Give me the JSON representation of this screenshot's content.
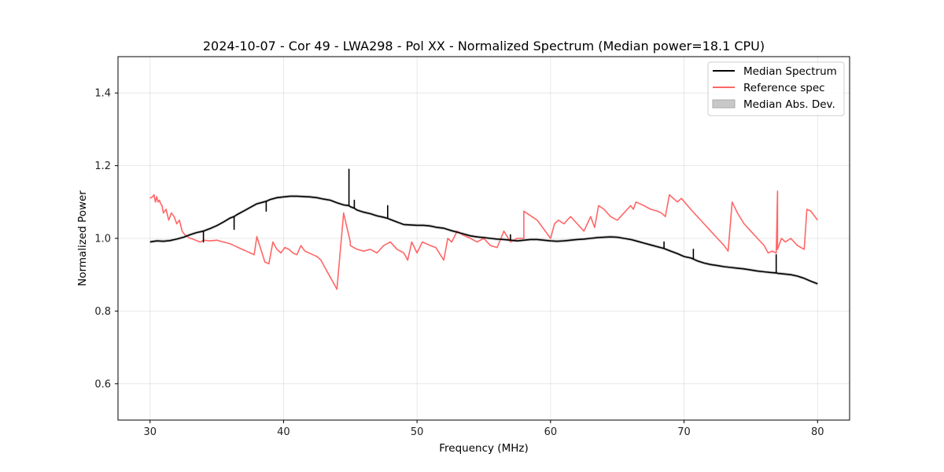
{
  "chart_data": {
    "type": "line",
    "title": "2024-10-07 - Cor 49 - LWA298 - Pol XX - Normalized Spectrum (Median power=18.1 CPU)",
    "xlabel": "Frequency (MHz)",
    "ylabel": "Normalized Power",
    "xlim": [
      27.6,
      82.4
    ],
    "ylim": [
      0.5,
      1.5
    ],
    "xticks": [
      30,
      40,
      50,
      60,
      70,
      80
    ],
    "yticks": [
      0.6,
      0.8,
      1.0,
      1.2,
      1.4
    ],
    "xtick_labels": [
      "30",
      "40",
      "50",
      "60",
      "70",
      "80"
    ],
    "ytick_labels": [
      "0.6",
      "0.8",
      "1.0",
      "1.2",
      "1.4"
    ],
    "grid": true,
    "legend_position": "top-right",
    "legend": [
      "Median Spectrum",
      "Reference spec",
      "Median Abs. Dev."
    ],
    "series": [
      {
        "name": "Median Spectrum",
        "color": "#000000",
        "x": [
          30.0,
          30.5,
          31.0,
          31.5,
          32.0,
          32.5,
          33.0,
          33.5,
          34.0,
          34.0,
          34.0,
          34.5,
          35.0,
          35.5,
          36.0,
          36.3,
          36.3,
          36.3,
          36.5,
          37.0,
          37.5,
          38.0,
          38.5,
          38.7,
          38.7,
          38.7,
          39.0,
          39.5,
          40.0,
          40.5,
          41.0,
          41.5,
          42.0,
          42.5,
          43.0,
          43.5,
          44.0,
          44.5,
          44.9,
          44.9,
          44.9,
          45.0,
          45.3,
          45.3,
          45.3,
          45.5,
          46.0,
          46.5,
          47.0,
          47.5,
          47.8,
          47.8,
          47.8,
          48.0,
          48.5,
          49.0,
          49.5,
          50.0,
          50.5,
          51.0,
          51.5,
          52.0,
          52.5,
          53.0,
          53.5,
          54.0,
          54.5,
          55.0,
          55.5,
          56.0,
          56.5,
          57.0,
          57.0,
          57.0,
          57.5,
          58.0,
          58.5,
          59.0,
          59.5,
          60.0,
          60.5,
          61.0,
          61.5,
          62.0,
          62.5,
          63.0,
          63.5,
          64.0,
          64.5,
          65.0,
          65.5,
          66.0,
          66.5,
          67.0,
          67.5,
          68.0,
          68.5,
          68.5,
          68.5,
          69.0,
          69.5,
          70.0,
          70.5,
          70.7,
          70.7,
          70.7,
          71.0,
          71.5,
          72.0,
          72.5,
          73.0,
          73.5,
          74.0,
          74.5,
          75.0,
          75.5,
          76.0,
          76.5,
          76.9,
          76.9,
          76.9,
          77.0,
          77.5,
          78.0,
          78.5,
          79.0,
          79.5,
          80.0
        ],
        "y": [
          0.99,
          0.993,
          0.992,
          0.994,
          0.998,
          1.003,
          1.01,
          1.016,
          1.02,
          0.99,
          1.02,
          1.027,
          1.035,
          1.045,
          1.056,
          1.06,
          1.025,
          1.06,
          1.065,
          1.075,
          1.085,
          1.095,
          1.1,
          1.102,
          1.075,
          1.102,
          1.107,
          1.112,
          1.114,
          1.116,
          1.116,
          1.115,
          1.114,
          1.112,
          1.108,
          1.105,
          1.098,
          1.092,
          1.09,
          1.19,
          1.09,
          1.087,
          1.083,
          1.105,
          1.083,
          1.078,
          1.072,
          1.068,
          1.062,
          1.058,
          1.055,
          1.09,
          1.055,
          1.052,
          1.045,
          1.038,
          1.037,
          1.036,
          1.036,
          1.034,
          1.03,
          1.028,
          1.022,
          1.017,
          1.012,
          1.007,
          1.004,
          1.002,
          1.0,
          0.998,
          0.997,
          0.995,
          1.01,
          0.995,
          0.993,
          0.995,
          0.997,
          0.997,
          0.995,
          0.993,
          0.992,
          0.993,
          0.995,
          0.997,
          0.998,
          1.0,
          1.002,
          1.003,
          1.004,
          1.003,
          1.0,
          0.997,
          0.992,
          0.987,
          0.982,
          0.977,
          0.972,
          0.99,
          0.972,
          0.965,
          0.958,
          0.95,
          0.946,
          0.943,
          0.97,
          0.943,
          0.938,
          0.932,
          0.928,
          0.925,
          0.922,
          0.92,
          0.918,
          0.916,
          0.913,
          0.91,
          0.908,
          0.906,
          0.905,
          0.955,
          0.905,
          0.904,
          0.902,
          0.9,
          0.896,
          0.89,
          0.882,
          0.875
        ]
      },
      {
        "name": "Reference spec",
        "color": "#ff6666",
        "x": [
          30.0,
          30.2,
          30.3,
          30.4,
          30.5,
          30.6,
          30.7,
          30.8,
          30.9,
          31.0,
          31.2,
          31.4,
          31.6,
          31.8,
          32.0,
          32.2,
          32.4,
          32.6,
          32.8,
          33.0,
          33.2,
          33.4,
          33.6,
          33.8,
          34.0,
          34.5,
          35.0,
          35.5,
          36.0,
          36.3,
          36.6,
          36.9,
          37.2,
          37.5,
          37.8,
          38.0,
          38.3,
          38.6,
          38.9,
          39.2,
          39.5,
          39.8,
          40.1,
          40.4,
          40.7,
          41.0,
          41.3,
          41.6,
          41.9,
          42.2,
          42.5,
          42.8,
          43.1,
          43.4,
          43.7,
          44.0,
          44.5,
          45.0,
          45.0,
          45.5,
          46.0,
          46.5,
          47.0,
          47.5,
          48.0,
          48.5,
          49.0,
          49.3,
          49.6,
          50.0,
          50.4,
          51.0,
          51.4,
          52.0,
          52.3,
          52.6,
          53.0,
          53.4,
          54.0,
          54.5,
          55.0,
          55.5,
          56.0,
          56.5,
          57.0,
          57.5,
          58.0,
          58.0,
          59.0,
          60.0,
          60.3,
          60.6,
          61.0,
          61.5,
          62.0,
          62.5,
          63.0,
          63.3,
          63.6,
          64.0,
          64.5,
          65.0,
          65.5,
          66.0,
          66.2,
          66.4,
          67.0,
          67.5,
          68.0,
          68.3,
          68.6,
          68.9,
          69.2,
          69.5,
          69.8,
          70.5,
          71.0,
          71.5,
          72.0,
          72.5,
          73.0,
          73.3,
          73.6,
          74.0,
          74.5,
          75.0,
          75.5,
          76.0,
          76.3,
          76.6,
          76.9,
          77.0,
          77.0,
          77.3,
          77.6,
          78.0,
          78.5,
          79.0,
          79.2,
          79.5,
          79.8,
          80.0
        ],
        "y": [
          1.11,
          1.115,
          1.12,
          1.1,
          1.115,
          1.1,
          1.105,
          1.095,
          1.09,
          1.07,
          1.08,
          1.05,
          1.07,
          1.06,
          1.04,
          1.05,
          1.02,
          1.01,
          1.005,
          1.0,
          0.998,
          0.995,
          0.992,
          0.99,
          0.995,
          0.993,
          0.995,
          0.99,
          0.985,
          0.98,
          0.975,
          0.97,
          0.965,
          0.96,
          0.955,
          1.005,
          0.97,
          0.935,
          0.93,
          0.99,
          0.97,
          0.96,
          0.975,
          0.97,
          0.96,
          0.955,
          0.98,
          0.965,
          0.96,
          0.955,
          0.95,
          0.94,
          0.92,
          0.9,
          0.88,
          0.86,
          1.07,
          0.99,
          0.98,
          0.97,
          0.965,
          0.97,
          0.96,
          0.98,
          0.99,
          0.97,
          0.96,
          0.94,
          0.99,
          0.96,
          0.99,
          0.98,
          0.975,
          0.94,
          1.0,
          0.99,
          1.02,
          1.01,
          1.0,
          0.99,
          1.0,
          0.98,
          0.975,
          1.02,
          0.99,
          1.0,
          1.0,
          1.075,
          1.05,
          1.0,
          1.04,
          1.05,
          1.04,
          1.06,
          1.04,
          1.02,
          1.06,
          1.03,
          1.09,
          1.08,
          1.06,
          1.05,
          1.07,
          1.09,
          1.08,
          1.1,
          1.09,
          1.08,
          1.075,
          1.07,
          1.06,
          1.12,
          1.11,
          1.1,
          1.11,
          1.08,
          1.06,
          1.04,
          1.02,
          1.0,
          0.98,
          0.965,
          1.1,
          1.07,
          1.04,
          1.02,
          1.0,
          0.98,
          0.96,
          0.965,
          0.96,
          1.13,
          0.97,
          1.0,
          0.99,
          1.0,
          0.98,
          0.97,
          1.08,
          1.075,
          1.06,
          1.05
        ]
      }
    ],
    "band": {
      "name": "Median Abs. Dev.",
      "color": "#c8c8c8"
    }
  }
}
